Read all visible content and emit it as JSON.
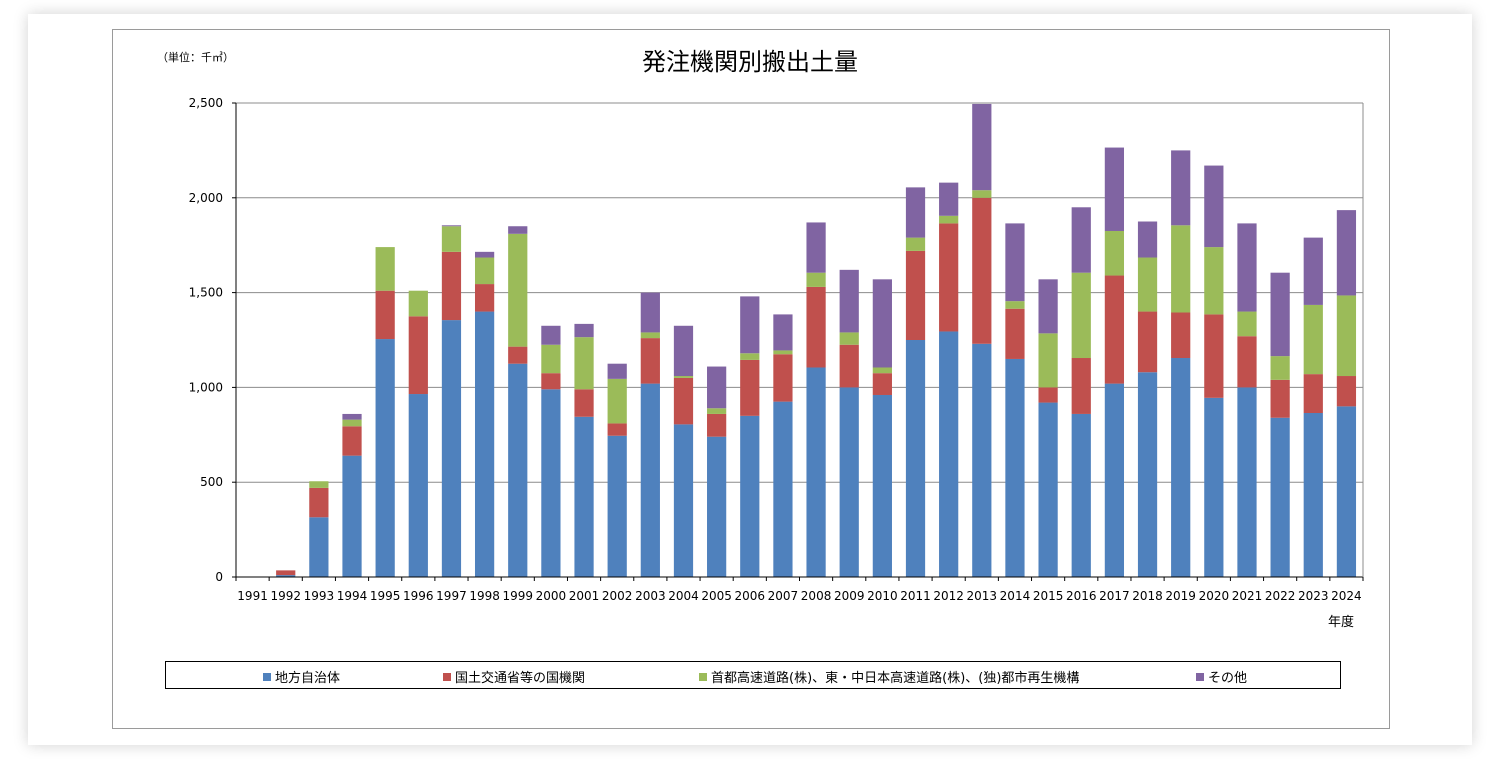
{
  "chart_data": {
    "type": "bar",
    "stacked": true,
    "title": "発注機関別搬出土量",
    "unit_label": "（単位：千㎥）",
    "xlabel": "年度",
    "ylim": [
      0,
      2500
    ],
    "yticks": [
      0,
      500,
      1000,
      1500,
      2000,
      2500
    ],
    "ytick_labels": [
      "0",
      "500",
      "1,000",
      "1,500",
      "2,000",
      "2,500"
    ],
    "grid": true,
    "legend_position": "bottom",
    "categories": [
      "1991",
      "1992",
      "1993",
      "1994",
      "1995",
      "1996",
      "1997",
      "1998",
      "1999",
      "2000",
      "2001",
      "2002",
      "2003",
      "2004",
      "2005",
      "2006",
      "2007",
      "2008",
      "2009",
      "2010",
      "2011",
      "2012",
      "2013",
      "2014",
      "2015",
      "2016",
      "2017",
      "2018",
      "2019",
      "2020",
      "2021",
      "2022",
      "2023",
      "2024"
    ],
    "series": [
      {
        "name": "地方自治体",
        "color": "#4f81bd",
        "values": [
          0,
          10,
          315,
          640,
          1255,
          965,
          1355,
          1400,
          1125,
          990,
          845,
          745,
          1020,
          805,
          740,
          850,
          925,
          1105,
          1000,
          960,
          1250,
          1295,
          1230,
          1150,
          920,
          860,
          1020,
          1080,
          1155,
          945,
          1000,
          840,
          865,
          900
        ]
      },
      {
        "name": "国土交通省等の国機関",
        "color": "#c0504d",
        "values": [
          0,
          25,
          155,
          155,
          255,
          410,
          360,
          145,
          90,
          85,
          145,
          65,
          240,
          245,
          120,
          295,
          250,
          425,
          225,
          115,
          470,
          570,
          770,
          265,
          80,
          295,
          570,
          320,
          240,
          440,
          270,
          200,
          205,
          160
        ]
      },
      {
        "name": "首都高速道路(株)、東・中日本高速道路(株)、(独)都市再生機構",
        "color": "#9bbb59",
        "values": [
          0,
          0,
          35,
          35,
          230,
          135,
          135,
          140,
          595,
          150,
          275,
          235,
          30,
          10,
          30,
          35,
          20,
          75,
          65,
          30,
          70,
          40,
          40,
          40,
          285,
          450,
          235,
          285,
          460,
          355,
          130,
          125,
          365,
          425
        ]
      },
      {
        "name": "その他",
        "color": "#8064a2",
        "values": [
          0,
          0,
          0,
          30,
          0,
          0,
          5,
          30,
          40,
          100,
          70,
          80,
          210,
          265,
          220,
          300,
          190,
          265,
          330,
          465,
          265,
          175,
          455,
          410,
          285,
          345,
          440,
          190,
          395,
          430,
          465,
          440,
          355,
          450
        ]
      }
    ]
  }
}
